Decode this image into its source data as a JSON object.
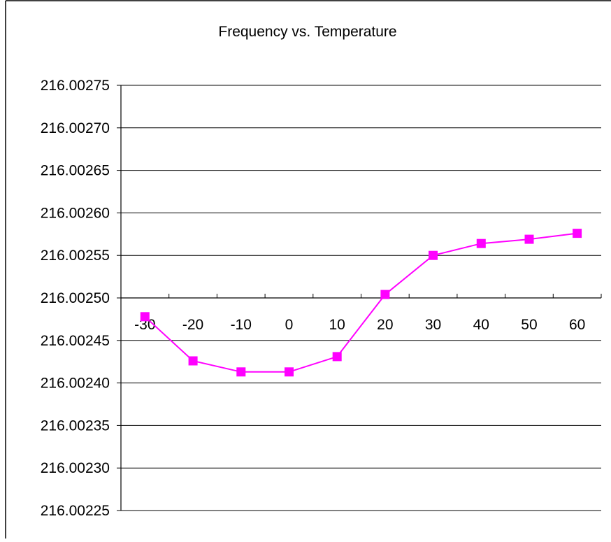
{
  "chart_data": {
    "type": "line",
    "title": "Frequency vs. Temperature",
    "xlabel": "",
    "ylabel": "",
    "categories": [
      "-30",
      "-20",
      "-10",
      "0",
      "10",
      "20",
      "30",
      "40",
      "50",
      "60"
    ],
    "series": [
      {
        "values": [
          216.002478,
          216.002426,
          216.002413,
          216.002413,
          216.002431,
          216.002504,
          216.00255,
          216.002564,
          216.002569,
          216.002576
        ],
        "color": "#FF00FF",
        "marker": "square"
      }
    ],
    "ylim": [
      216.00225,
      216.00275
    ],
    "yticks": [
      "216.00225",
      "216.00230",
      "216.00235",
      "216.00240",
      "216.00245",
      "216.00250",
      "216.00255",
      "216.00260",
      "216.00265",
      "216.00270",
      "216.00275"
    ],
    "x_axis_crosses_y_at": 216.0025,
    "grid": "horizontal",
    "legend": "none"
  }
}
